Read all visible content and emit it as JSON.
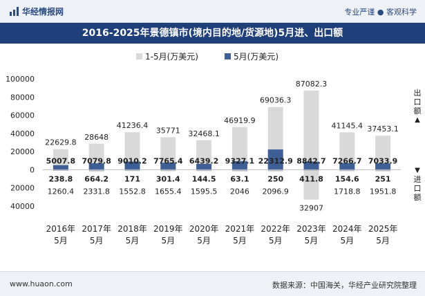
{
  "header": {
    "brand": "华经情报网",
    "slogan": "专业严谨 ● 客观科学"
  },
  "title": "2016-2025年景德镇市(境内目的地/货源地)5月进、出口额",
  "footer": {
    "site": "www.huaon.com",
    "source": "数据来源：中国海关，华经产业研究院整理"
  },
  "side_labels": {
    "export": "出口额",
    "import": "进口额"
  },
  "colors": {
    "ytd": "#d9d9d9",
    "month": "#3e5f95"
  },
  "chart_data": {
    "type": "bar",
    "title": "2016-2025年景德镇市(境内目的地/货源地)5月进、出口额",
    "categories": [
      [
        "2016年",
        "5月"
      ],
      [
        "2017年",
        "5月"
      ],
      [
        "2018年",
        "5月"
      ],
      [
        "2019年",
        "5月"
      ],
      [
        "2020年",
        "5月"
      ],
      [
        "2021年",
        "5月"
      ],
      [
        "2022年",
        "5月"
      ],
      [
        "2023年",
        "5月"
      ],
      [
        "2024年",
        "5月"
      ],
      [
        "2025年",
        "5月"
      ]
    ],
    "ylim": [
      -40000,
      100000
    ],
    "yticks": [
      -40000,
      -20000,
      0,
      20000,
      40000,
      60000,
      80000,
      100000
    ],
    "ytick_labels": [
      "40000",
      "20000",
      "0",
      "20000",
      "40000",
      "60000",
      "80000",
      "100000"
    ],
    "legend": [
      "1-5月(万美元)",
      "5月(万美元)"
    ],
    "legend_position": "top-center",
    "series": [
      {
        "name": "1-5月(万美元)",
        "role": "export",
        "values": [
          22629.8,
          28648,
          41236.4,
          35771,
          32468.1,
          46919.9,
          69036.3,
          87082.3,
          41145.4,
          37453.1
        ],
        "labels": [
          "22629.8",
          "28648",
          "41236.4",
          "35771",
          "32468.1",
          "46919.9",
          "69036.3",
          "87082.3",
          "41145.4",
          "37453.1"
        ]
      },
      {
        "name": "5月(万美元)",
        "role": "export",
        "values": [
          5007.8,
          7079.8,
          9010.2,
          7765.4,
          6439.2,
          9327.1,
          22312.9,
          8842.7,
          7266.7,
          7033.9
        ],
        "labels": [
          "5007.8",
          "7079.8",
          "9010.2",
          "7765.4",
          "6439.2",
          "9327.1",
          "22312.9",
          "8842.7",
          "7266.7",
          "7033.9"
        ]
      },
      {
        "name": "1-5月(万美元)",
        "role": "import",
        "values": [
          1260.4,
          2331.8,
          1552.8,
          1655.4,
          1595.5,
          2046,
          2096.9,
          32907,
          1718.8,
          1951.8
        ],
        "labels": [
          "1260.4",
          "2331.8",
          "1552.8",
          "1655.4",
          "1595.5",
          "2046",
          "2096.9",
          "32907",
          "1718.8",
          "1951.8"
        ]
      },
      {
        "name": "5月(万美元)",
        "role": "import",
        "values": [
          238.8,
          664.2,
          171,
          301.4,
          144.5,
          63.1,
          250,
          411.8,
          154.6,
          251
        ],
        "labels": [
          "238.8",
          "664.2",
          "171",
          "301.4",
          "144.5",
          "63.1",
          "250",
          "411.8",
          "154.6",
          "251"
        ]
      }
    ]
  }
}
